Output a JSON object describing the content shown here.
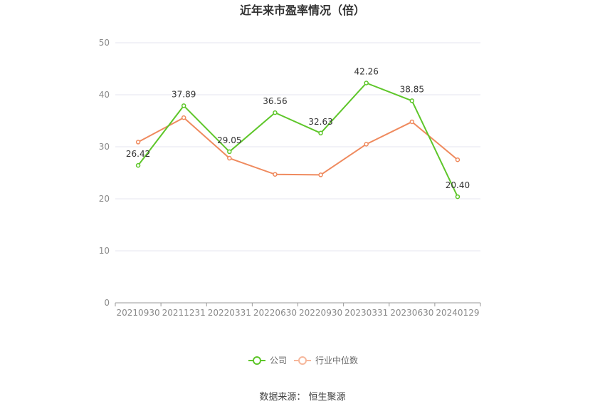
{
  "chart_data": {
    "type": "line",
    "title": "近年来市盈率情况（倍）",
    "categories": [
      "20210930",
      "20211231",
      "20220331",
      "20220630",
      "20220930",
      "20230331",
      "20230630",
      "20240129"
    ],
    "series": [
      {
        "name": "公司",
        "color": "#5ec62a",
        "values": [
          26.42,
          37.89,
          29.05,
          36.56,
          32.63,
          42.26,
          38.85,
          20.4
        ],
        "labels": [
          "26.42",
          "37.89",
          "29.05",
          "36.56",
          "32.63",
          "42.26",
          "38.85",
          "20.40"
        ]
      },
      {
        "name": "行业中位数",
        "color": "#ef8a5e",
        "values": [
          30.9,
          35.6,
          27.8,
          24.7,
          24.6,
          30.5,
          34.8,
          27.5
        ]
      }
    ],
    "yticks": [
      "0",
      "10",
      "20",
      "30",
      "40",
      "50"
    ],
    "ylim": [
      0,
      50
    ],
    "grid": true,
    "legend": "bottom-center"
  },
  "footer": {
    "source": "数据来源：  恒生聚源"
  }
}
